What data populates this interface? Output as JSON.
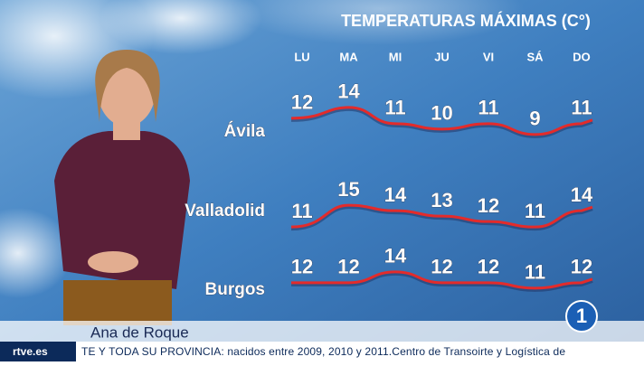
{
  "title": "TEMPERATURAS MÁXIMAS (C°)",
  "days": [
    "LU",
    "MA",
    "MI",
    "JU",
    "VI",
    "SÁ",
    "DO"
  ],
  "cities": [
    {
      "name": "Ávila",
      "values": [
        12,
        14,
        11,
        10,
        11,
        9,
        11
      ]
    },
    {
      "name": "Valladolid",
      "values": [
        11,
        15,
        14,
        13,
        12,
        11,
        14
      ]
    },
    {
      "name": "Burgos",
      "values": [
        12,
        12,
        14,
        12,
        12,
        11,
        12
      ]
    }
  ],
  "presenter": "Ana de Roque",
  "channel_logo": "1",
  "site": "rtve.es",
  "ticker": "TE Y TODA SU PROVINCIA: nacidos entre 2009, 2010 y 2011.Centro de Transoirte y Logística de"
}
